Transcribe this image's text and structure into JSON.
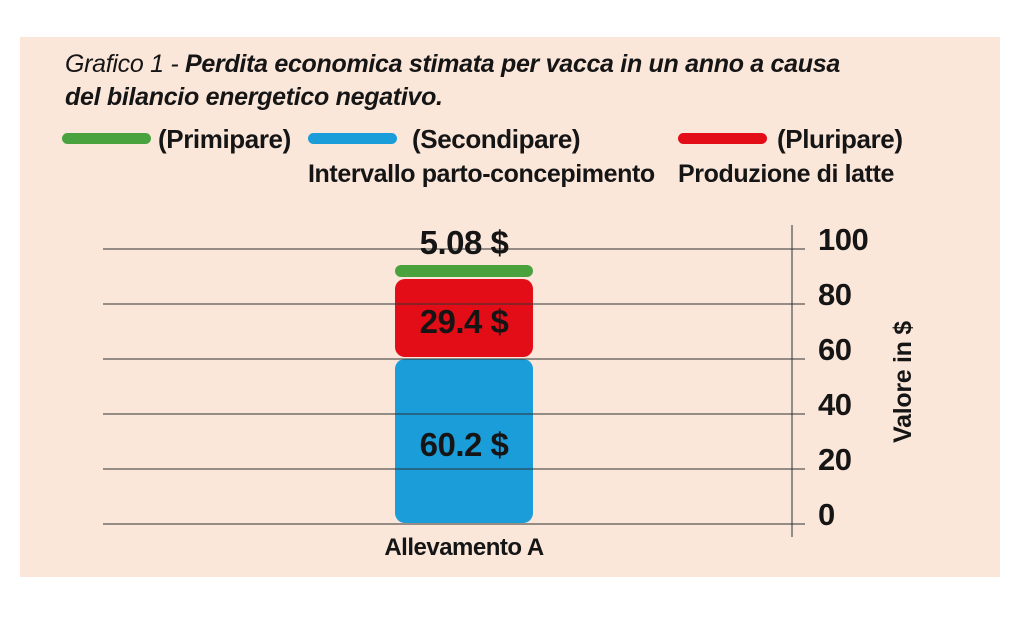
{
  "title": {
    "prefix": "Grafico 1 - ",
    "bold_part": "Perdita economica stimata per vacca in un anno a causa",
    "line2": "del bilancio energetico negativo."
  },
  "legend": [
    {
      "label": "(Primipare)",
      "color": "#4aa23e",
      "sublabel": ""
    },
    {
      "label": "(Secondipare)",
      "color": "#1b9dd9",
      "sublabel": "Intervallo parto-concepimento"
    },
    {
      "label": "(Pluripare)",
      "color": "#e30d18",
      "sublabel": "Produzione di latte"
    }
  ],
  "chart_data": {
    "type": "bar",
    "stacked": true,
    "categories": [
      "Allevamento A"
    ],
    "series": [
      {
        "name": "(Secondipare) Intervallo parto-concepimento",
        "key": "secondipare",
        "values": [
          60.2
        ],
        "color": "#1b9dd9",
        "value_label": "60.2 $",
        "label_position": "inside"
      },
      {
        "name": "(Pluripare) Produzione di latte",
        "key": "pluripare",
        "values": [
          29.4
        ],
        "color": "#e30d18",
        "value_label": "29.4 $",
        "label_position": "inside"
      },
      {
        "name": "(Primipare)",
        "key": "primipare",
        "values": [
          5.08
        ],
        "color": "#4aa23e",
        "value_label": "5.08 $",
        "label_position": "above"
      }
    ],
    "title": "Grafico 1 - Perdita economica stimata per vacca in un anno a causa del bilancio energetico negativo.",
    "xlabel": "",
    "ylabel": "Valore in $",
    "yticks": [
      0,
      20,
      40,
      60,
      80,
      100
    ],
    "ylim": [
      0,
      100
    ],
    "grid": true,
    "legend_position": "top"
  },
  "colors": {
    "panel_background": "#fbe6da",
    "page_background": "#ffffff",
    "gridline": "#8d8d8b",
    "text": "#151515"
  }
}
